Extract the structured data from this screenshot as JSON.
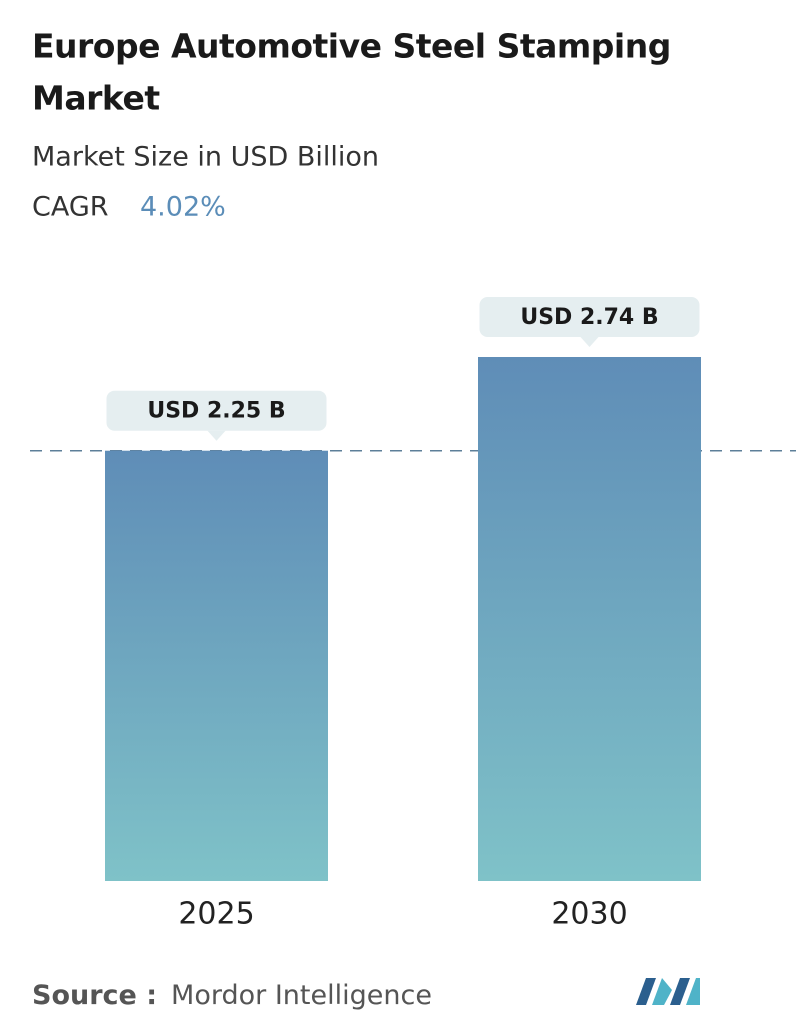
{
  "chart_data": {
    "type": "bar",
    "title_lines": [
      "Europe Automotive Steel Stamping",
      "Market"
    ],
    "subtitle": "Market Size in USD Billion",
    "cagr_label": "CAGR",
    "cagr": "4.02%",
    "categories": [
      "2025",
      "2030"
    ],
    "values": [
      2.25,
      2.74
    ],
    "value_labels": [
      "USD 2.25 B",
      "USD 2.74 B"
    ],
    "source_label": "Source :",
    "source": "Mordor Intelligence"
  }
}
